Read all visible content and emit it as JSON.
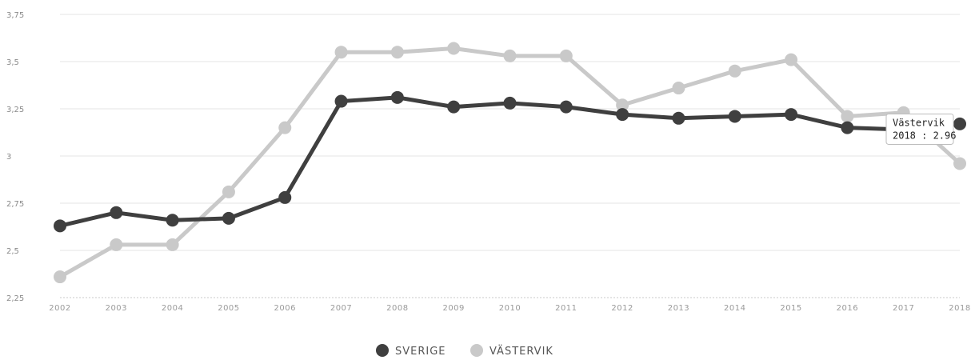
{
  "chart_data": {
    "type": "line",
    "categories": [
      "2002",
      "2003",
      "2004",
      "2005",
      "2006",
      "2007",
      "2008",
      "2009",
      "2010",
      "2011",
      "2012",
      "2013",
      "2014",
      "2015",
      "2016",
      "2017",
      "2018"
    ],
    "y_ticks": [
      "2,25",
      "2,5",
      "2,75",
      "3",
      "3,25",
      "3,5",
      "3,75"
    ],
    "ylim": [
      2.25,
      3.75
    ],
    "grid": true,
    "legend_position": "bottom-center",
    "series": [
      {
        "name": "SVERIGE",
        "color": "#3f3f3f",
        "values": [
          2.63,
          2.7,
          2.66,
          2.67,
          2.78,
          3.29,
          3.31,
          3.26,
          3.28,
          3.26,
          3.22,
          3.2,
          3.21,
          3.22,
          3.15,
          3.14,
          3.17
        ]
      },
      {
        "name": "VÄSTERVIK",
        "color": "#c9c9c9",
        "values": [
          2.36,
          2.53,
          2.53,
          2.81,
          3.15,
          3.55,
          3.55,
          3.57,
          3.53,
          3.53,
          3.27,
          3.36,
          3.45,
          3.51,
          3.21,
          3.23,
          2.96
        ]
      }
    ],
    "tooltip": {
      "series": "Västervik",
      "text": "2018 : 2.96"
    }
  }
}
